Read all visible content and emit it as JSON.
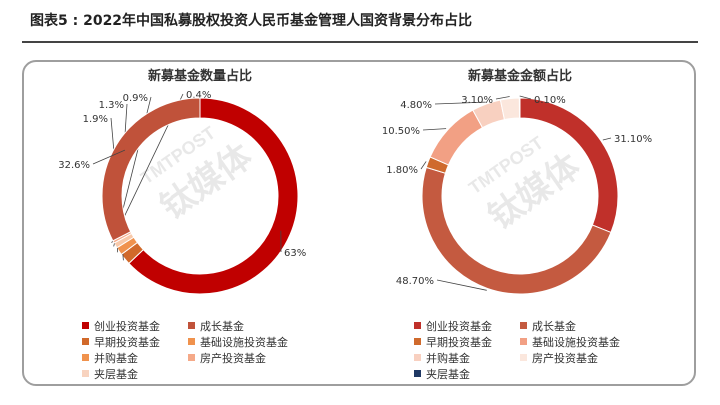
{
  "figure": {
    "title": "图表5 : 2022年中国私募股权投资人民币基金管理人国资背景分布占比"
  },
  "chart_data": [
    {
      "type": "pie",
      "title": "新募基金数量占比",
      "slices": [
        {
          "name": "创业投资基金",
          "value": 63,
          "label": "63%",
          "color": "#c00000"
        },
        {
          "name": "早期投资基金",
          "value": 1.9,
          "label": "1.9%",
          "color": "#d1692a"
        },
        {
          "name": "并购基金",
          "value": 1.3,
          "label": "1.3%",
          "color": "#f0924d"
        },
        {
          "name": "夹层基金",
          "value": 0.9,
          "label": "0.9%",
          "color": "#f8c9aa"
        },
        {
          "name": "房产投资基金",
          "value": 0.4,
          "label": "0.4%",
          "color": "#f5a988"
        },
        {
          "name": "成长基金",
          "value": 32.6,
          "label": "32.6%",
          "color": "#c0523a"
        }
      ],
      "legend": {
        "position": "bottom",
        "entries": [
          {
            "name": "创业投资基金",
            "color": "#c00000"
          },
          {
            "name": "成长基金",
            "color": "#c0523a"
          },
          {
            "name": "早期投资基金",
            "color": "#d1692a"
          },
          {
            "name": "基础设施投资基金",
            "color": "#f0924d"
          },
          {
            "name": "并购基金",
            "color": "#f0924d"
          },
          {
            "name": "房产投资基金",
            "color": "#f5a988"
          },
          {
            "name": "夹层基金",
            "color": "#f8d3bf"
          }
        ]
      }
    },
    {
      "type": "pie",
      "title": "新募基金金额占比",
      "slices": [
        {
          "name": "创业投资基金",
          "value": 31.1,
          "label": "31.10%",
          "color": "#c0302a"
        },
        {
          "name": "成长基金",
          "value": 48.7,
          "label": "48.70%",
          "color": "#c45a40"
        },
        {
          "name": "早期投资基金",
          "value": 1.8,
          "label": "1.80%",
          "color": "#cf6a2d"
        },
        {
          "name": "基础设施投资基金",
          "value": 10.5,
          "label": "10.50%",
          "color": "#f2a084"
        },
        {
          "name": "并购基金",
          "value": 4.8,
          "label": "4.80%",
          "color": "#f8d0c0"
        },
        {
          "name": "房产投资基金",
          "value": 3.1,
          "label": "3.10%",
          "color": "#fbe7dd"
        },
        {
          "name": "夹层基金",
          "value": 0.1,
          "label": "0.10%",
          "color": "#1f3864"
        }
      ],
      "legend": {
        "position": "bottom",
        "entries": [
          {
            "name": "创业投资基金",
            "color": "#c0302a"
          },
          {
            "name": "成长基金",
            "color": "#c45a40"
          },
          {
            "name": "早期投资基金",
            "color": "#cf6a2d"
          },
          {
            "name": "基础设施投资基金",
            "color": "#f2a084"
          },
          {
            "name": "并购基金",
            "color": "#f8d0c0"
          },
          {
            "name": "房产投资基金",
            "color": "#fbe7dd"
          },
          {
            "name": "夹层基金",
            "color": "#1f3864"
          }
        ]
      }
    }
  ],
  "watermark": {
    "brand": "钛媒体",
    "latin": "TMTPOST"
  }
}
